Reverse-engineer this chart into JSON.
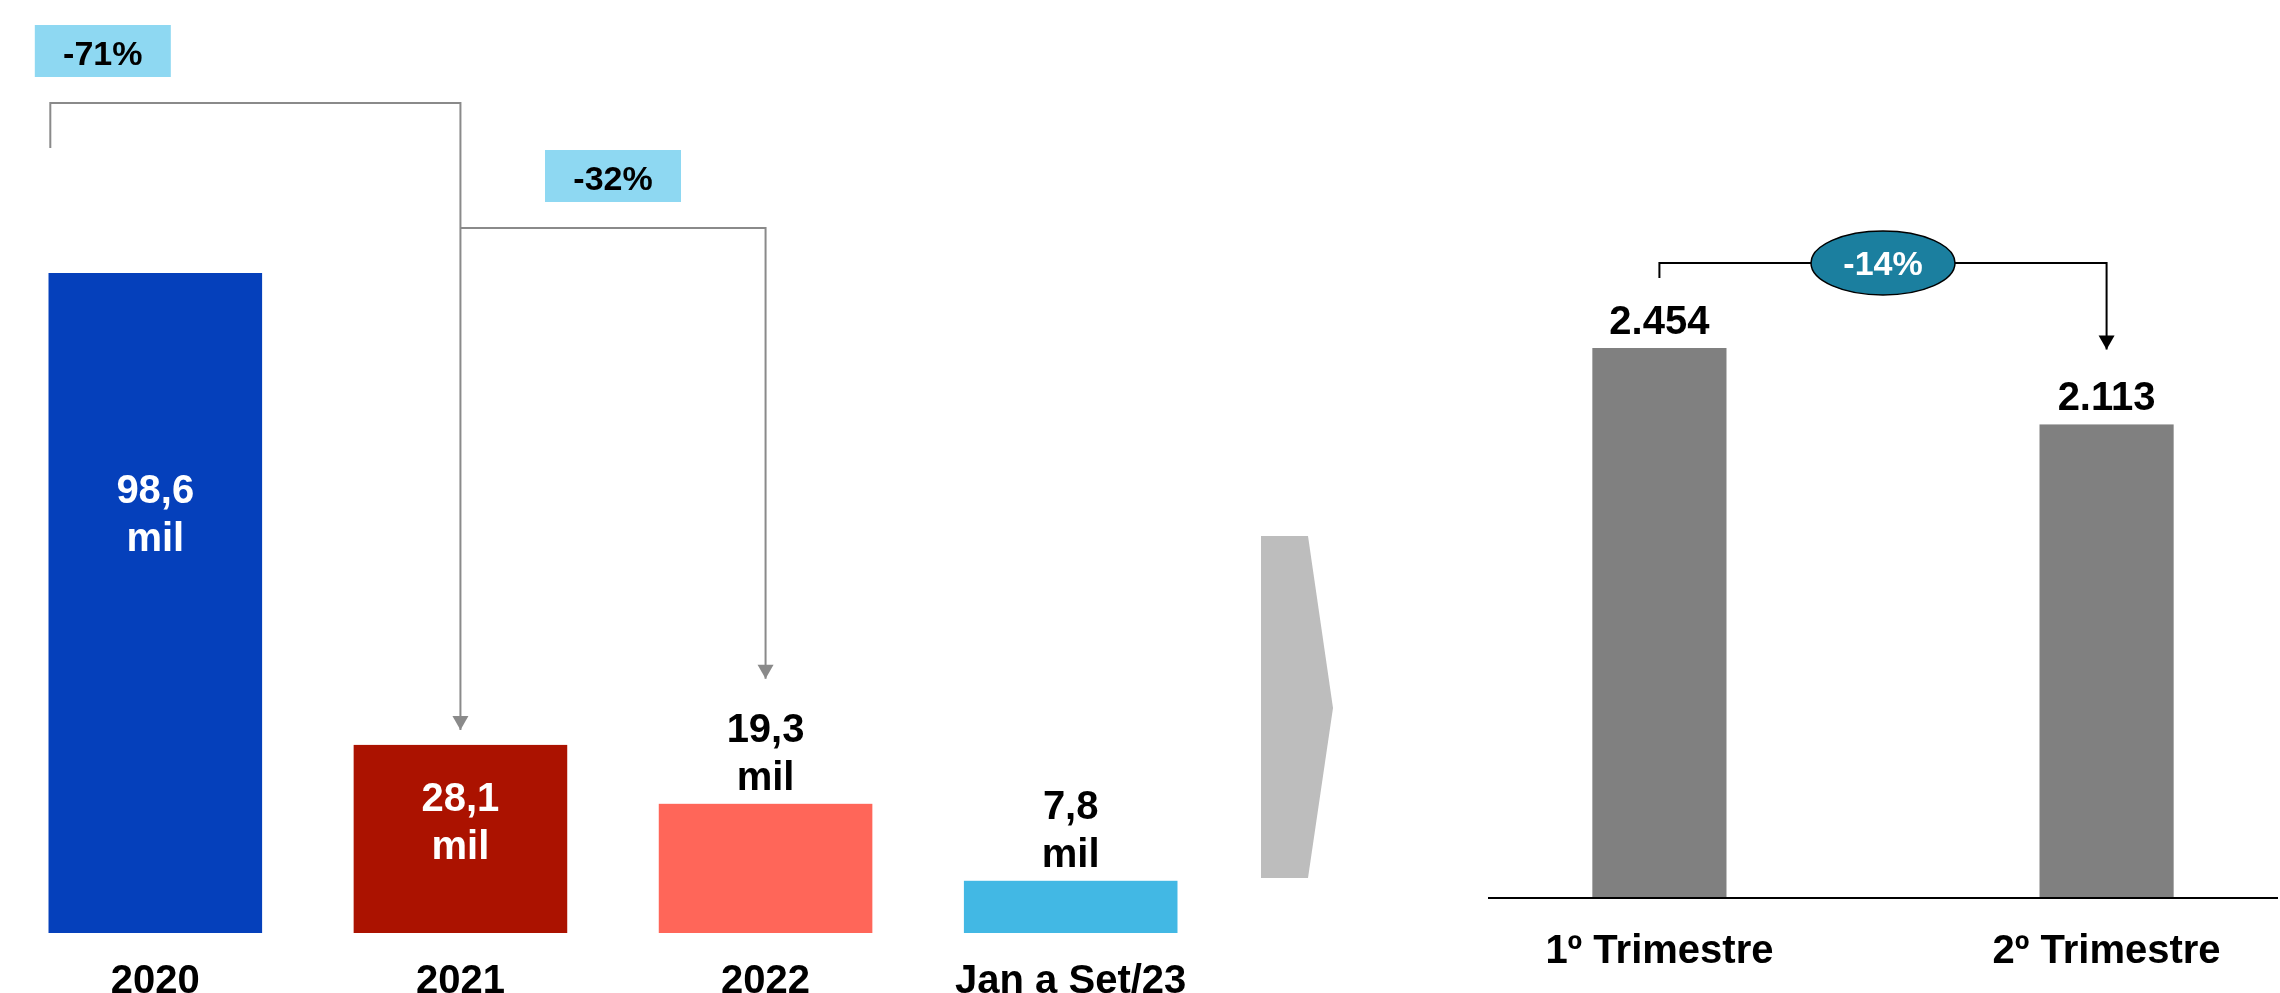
{
  "chart_data": [
    {
      "type": "bar",
      "categories": [
        "2020",
        "2021",
        "2022",
        "Jan a Set/23"
      ],
      "values": [
        98.6,
        28.1,
        19.3,
        7.8
      ],
      "colors": [
        "#0540bb",
        "#ab1200",
        "#ff6659",
        "#42b8e4"
      ],
      "value_labels": [
        "98,6 mil",
        "28,1 mil",
        "19,3 mil",
        "7,8 mil"
      ],
      "annotations": [
        "-71%",
        "-32%"
      ]
    },
    {
      "type": "bar",
      "categories": [
        "1º Trimestre",
        "2º Trimestre"
      ],
      "values": [
        2454,
        2113
      ],
      "color": "#808080",
      "value_labels": [
        "2.454",
        "2.113"
      ],
      "annotations": [
        "-14%"
      ]
    }
  ]
}
